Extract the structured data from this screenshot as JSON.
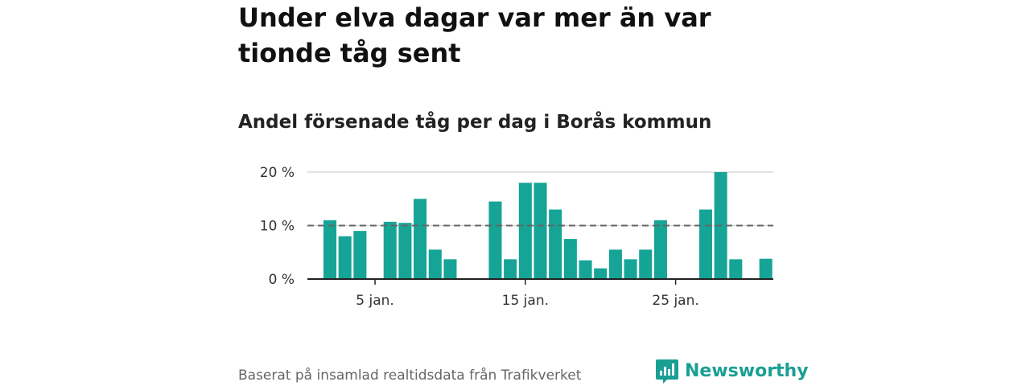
{
  "headline": "Under elva dagar var mer än var tionde tåg sent",
  "subtitle": "Andel försenade tåg per dag i Borås kommun",
  "source": "Baserat på insamlad realtidsdata från Trafikverket",
  "brand": {
    "name": "Newsworthy",
    "color": "#1a9f94"
  },
  "chart_data": {
    "type": "bar",
    "x_unit": "day of January",
    "x": [
      1,
      2,
      3,
      4,
      5,
      6,
      7,
      8,
      9,
      10,
      11,
      12,
      13,
      14,
      15,
      16,
      17,
      18,
      19,
      20,
      21,
      22,
      23,
      24,
      25,
      26,
      27,
      28,
      29,
      30,
      31
    ],
    "values": [
      null,
      11,
      8,
      9,
      0,
      10.7,
      10.5,
      15,
      5.5,
      3.7,
      0,
      0,
      14.5,
      3.7,
      18,
      18,
      13,
      7.5,
      3.5,
      2,
      5.5,
      3.7,
      5.5,
      11,
      0,
      0,
      13,
      20,
      3.7,
      0,
      3.8
    ],
    "reference_line": {
      "value": 10,
      "style": "dashed",
      "color": "#666666"
    },
    "ylim": [
      0,
      20
    ],
    "yticks": [
      0,
      10,
      20
    ],
    "ytick_labels": [
      "0 %",
      "10 %",
      "20 %"
    ],
    "xticks": [
      5,
      15,
      25
    ],
    "xtick_labels": [
      "5 jan.",
      "15 jan.",
      "25 jan."
    ],
    "bar_color": "#16a497",
    "grid": true
  }
}
